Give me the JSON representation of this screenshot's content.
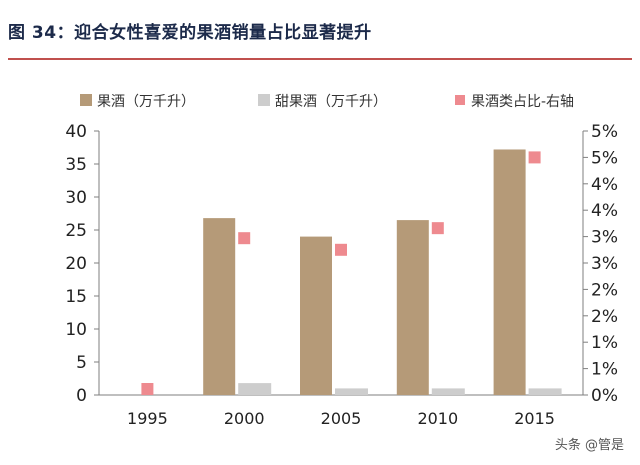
{
  "page": {
    "title": "图 34：迎合女性喜爱的果酒销量占比显著提升",
    "watermark": "头条 @管是"
  },
  "colors": {
    "accent_rule": "#c0504d",
    "fruit_wine": "#b59a78",
    "sweet_fruit_wine": "#cdcdcd",
    "share_marker": "#ee8a8f"
  },
  "chart_data": {
    "type": "bar",
    "categories": [
      "1995",
      "2000",
      "2005",
      "2010",
      "2015"
    ],
    "series": [
      {
        "name": "果酒（万千升）",
        "type": "bar",
        "axis": "left",
        "values": [
          0,
          26.8,
          24.0,
          26.5,
          37.2
        ]
      },
      {
        "name": "甜果酒（万千升）",
        "type": "bar",
        "axis": "left",
        "values": [
          0,
          1.8,
          1.0,
          1.0,
          1.0
        ]
      },
      {
        "name": "果酒类占比-右轴",
        "type": "scatter",
        "axis": "right",
        "values": [
          0,
          0.0297,
          0.0275,
          0.0316,
          0.045
        ]
      }
    ],
    "y_left": {
      "min": 0,
      "max": 40,
      "ticks": [
        "0",
        "5",
        "10",
        "15",
        "20",
        "25",
        "30",
        "35",
        "40"
      ]
    },
    "y_right": {
      "min": 0,
      "max": 0.05,
      "ticks": [
        "0%",
        "1%",
        "1%",
        "2%",
        "2%",
        "3%",
        "3%",
        "4%",
        "4%",
        "5%",
        "5%"
      ]
    },
    "legend_position": "top",
    "grid": false
  }
}
